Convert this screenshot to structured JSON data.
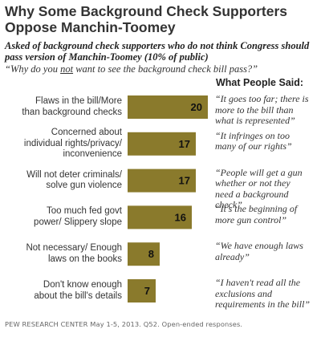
{
  "title": "Why Some Background Check Supporters Oppose Manchin-Toomey",
  "subtitle": "Asked of background check supporters who do not think Congress should pass version of Manchin-Toomey (10% of public)",
  "question_prefix": "“Why do you ",
  "question_emph": "not",
  "question_suffix": " want to see the background check bill pass?”",
  "quote_header": "What People Said:",
  "source": "PEW RESEARCH CENTER May 1-5, 2013. Q52. Open-ended responses.",
  "colors": {
    "bar": "#8a7a2c",
    "text": "#333333"
  },
  "chart_data": {
    "type": "bar",
    "orientation": "horizontal",
    "categories": [
      "Flaws in the bill/More than background checks",
      "Concerned about individual rights/privacy/ inconvenience",
      "Will not deter criminals/ solve gun violence",
      "Too much fed govt power/ Slippery slope",
      "Not necessary/ Enough laws on the books",
      "Don't know enough about the bill's details"
    ],
    "values": [
      20,
      17,
      17,
      16,
      8,
      7
    ],
    "xlim": [
      0,
      20
    ],
    "grid": false,
    "legend": "none"
  },
  "rows": [
    {
      "label_lines": [
        "Flaws in the bill/More",
        "than background checks"
      ],
      "quote_lines": [
        "“It goes too far; there is",
        "more to the bill than",
        "what is represented”"
      ]
    },
    {
      "label_lines": [
        "Concerned about",
        "individual rights/privacy/",
        "inconvenience"
      ],
      "quote_lines": [
        "“It infringes on too",
        "many of our rights”"
      ]
    },
    {
      "label_lines": [
        "Will not deter criminals/",
        "solve gun violence"
      ],
      "quote_lines": [
        "“People will get a gun",
        "whether or not they",
        "need a background",
        "check”"
      ]
    },
    {
      "label_lines": [
        "Too much fed govt",
        "power/ Slippery slope"
      ],
      "quote_lines": [
        "“It's the beginning of",
        "more gun control”"
      ]
    },
    {
      "label_lines": [
        "Not necessary/ Enough",
        "laws on the books"
      ],
      "quote_lines": [
        "“We have enough laws",
        "already”"
      ]
    },
    {
      "label_lines": [
        "Don't know enough",
        "about the bill's details"
      ],
      "quote_lines": [
        "“I haven't read all the",
        "exclusions and",
        "requirements in the bill”"
      ]
    }
  ]
}
